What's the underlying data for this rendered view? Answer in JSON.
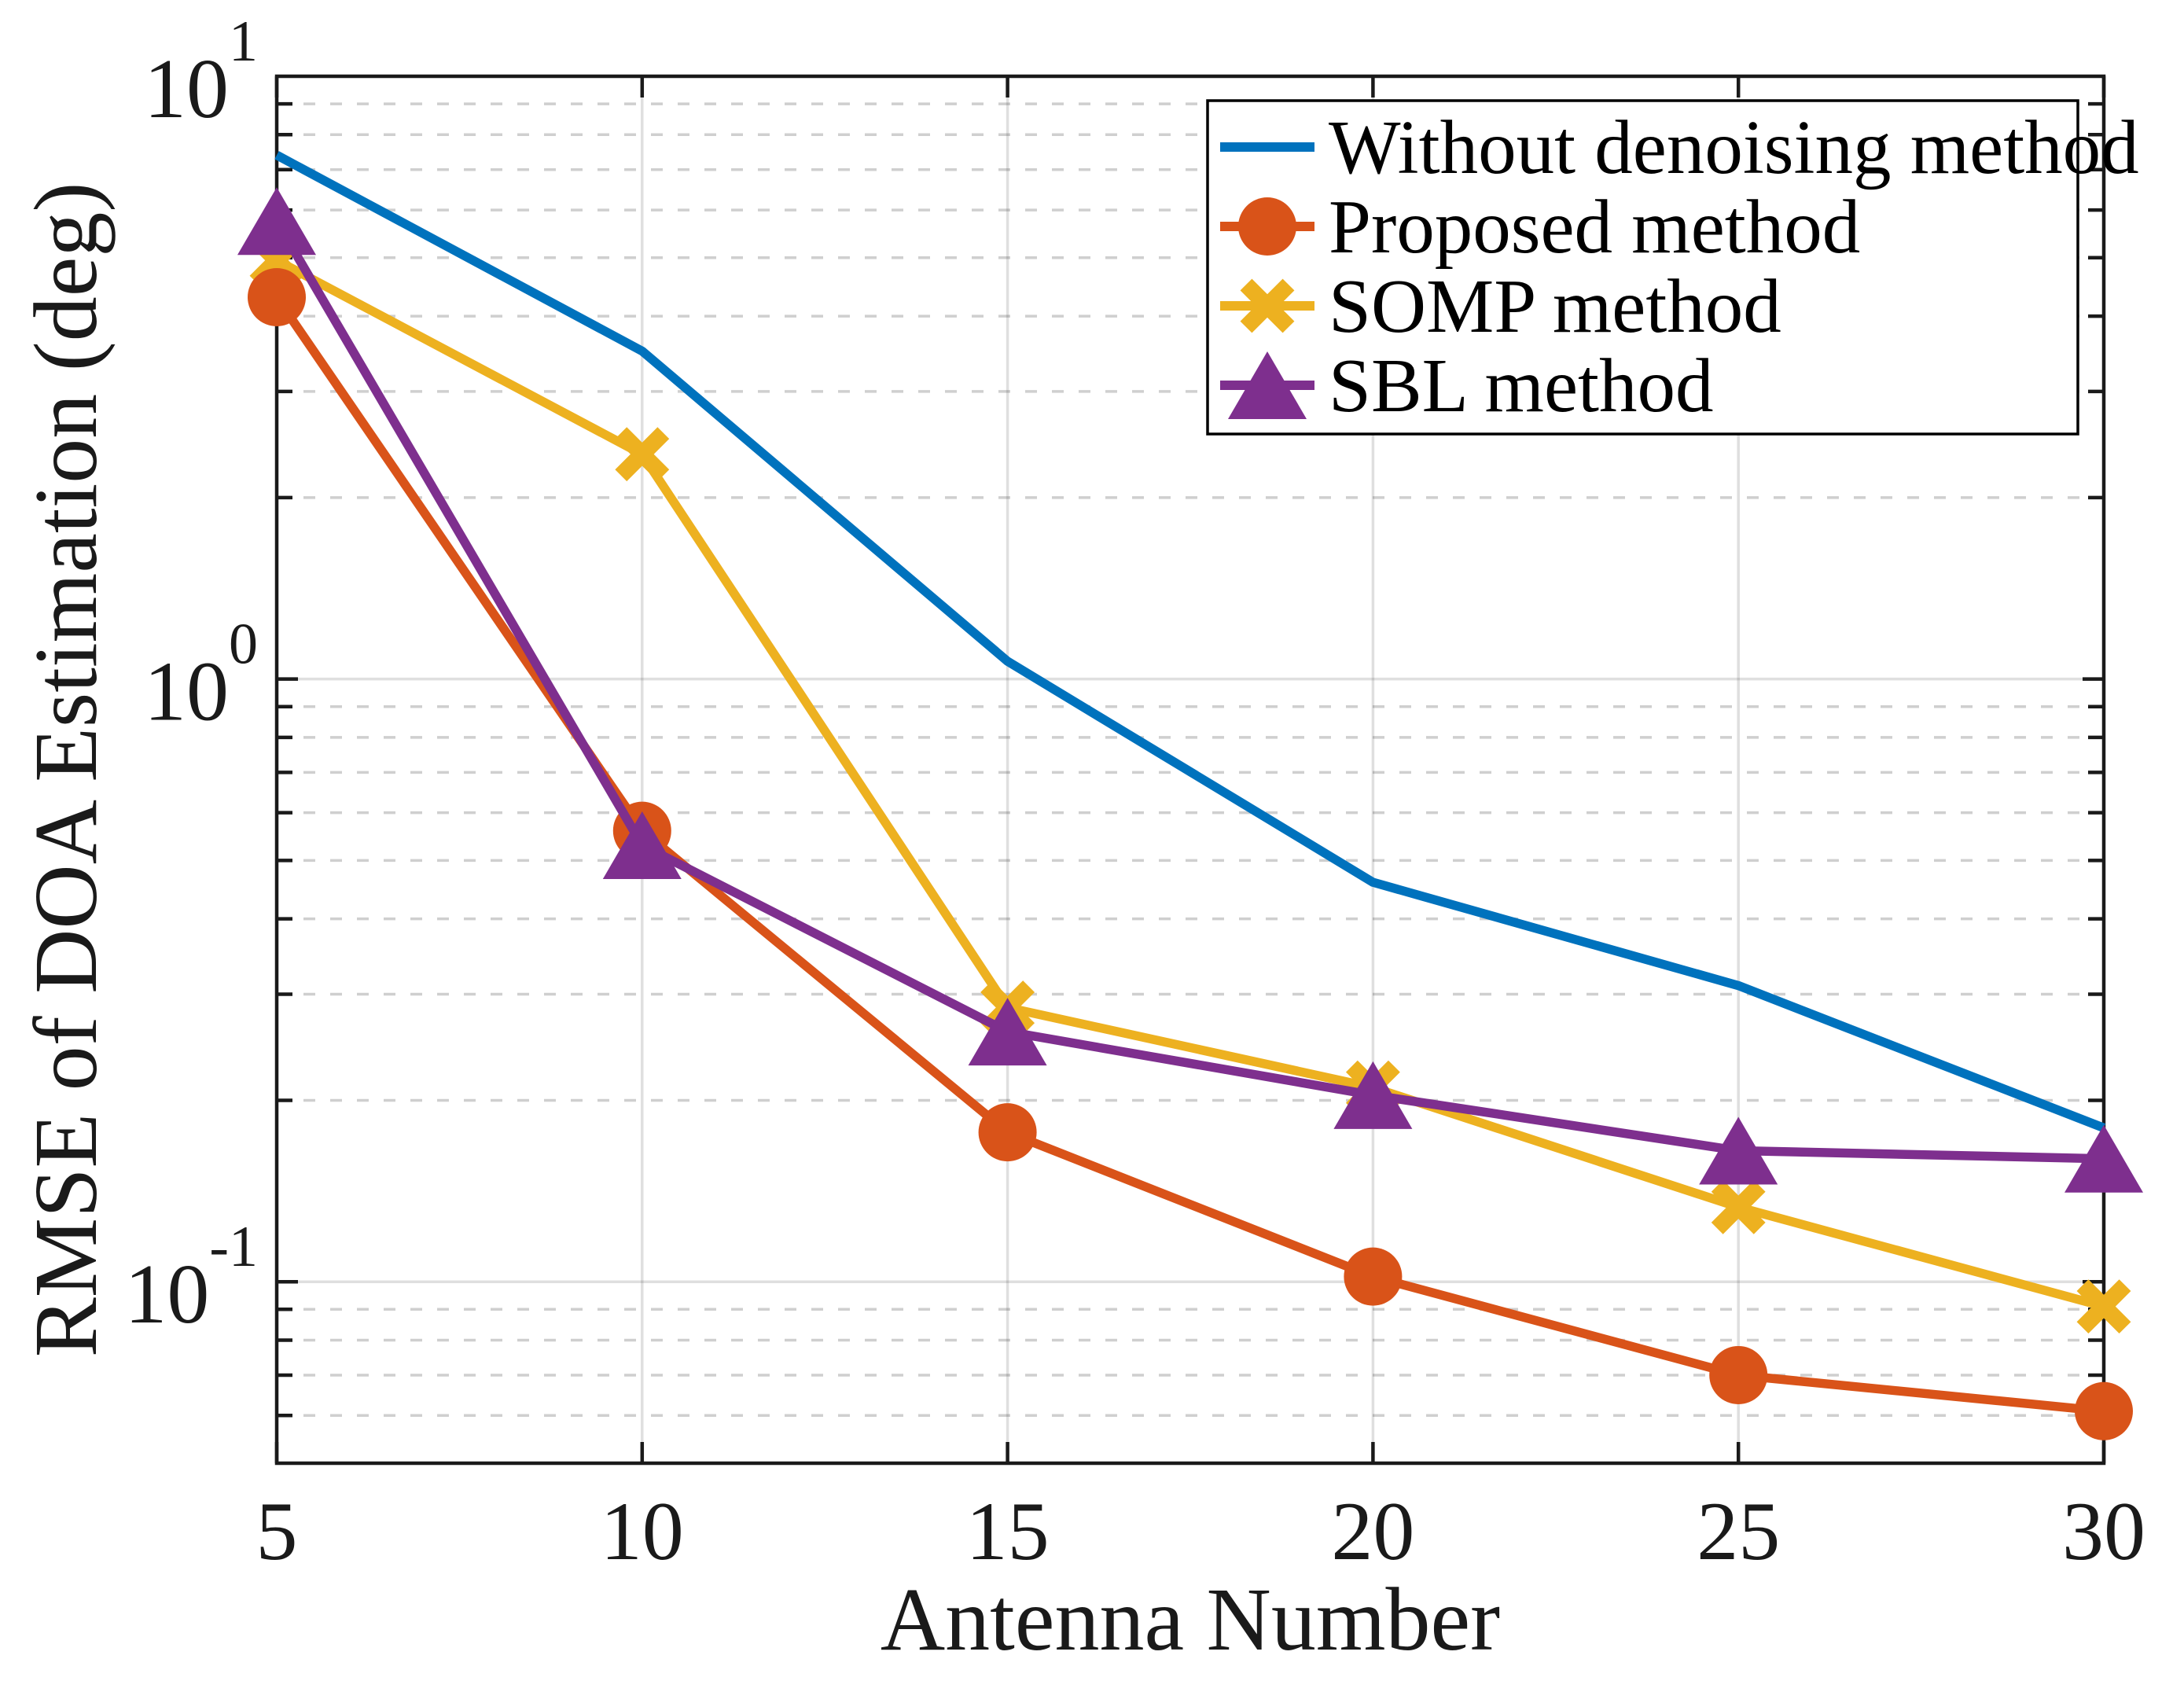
{
  "chart_data": {
    "type": "line",
    "title": "",
    "xlabel": "Antenna Number",
    "ylabel": "RMSE of DOA Estimation (deg)",
    "xlim": [
      5,
      30
    ],
    "ylim": [
      0.05,
      10
    ],
    "yscale": "log",
    "grid": true,
    "minor_grid": true,
    "legend_position": "northeast",
    "x": [
      5,
      10,
      15,
      20,
      25,
      30
    ],
    "x_tick_labels": [
      "5",
      "10",
      "15",
      "20",
      "25",
      "30"
    ],
    "y_major_ticks": [
      10,
      1,
      0.1
    ],
    "y_major_tick_labels": [
      {
        "mantissa": "10",
        "exponent": "1"
      },
      {
        "mantissa": "10",
        "exponent": "0"
      },
      {
        "mantissa": "10",
        "exponent": "-1"
      }
    ],
    "series": [
      {
        "name": "Without denoising method",
        "color": "#0072BD",
        "marker": "none",
        "values": [
          7.4,
          3.5,
          1.07,
          0.46,
          0.31,
          0.18
        ]
      },
      {
        "name": "Proposed method",
        "color": "#D95319",
        "marker": "circle",
        "values": [
          4.3,
          0.56,
          0.177,
          0.102,
          0.07,
          0.061
        ]
      },
      {
        "name": "SOMP method",
        "color": "#EDB120",
        "marker": "x",
        "values": [
          4.95,
          2.36,
          0.285,
          0.21,
          0.133,
          0.091
        ]
      },
      {
        "name": "SBL method",
        "color": "#7E2F8E",
        "marker": "triangle",
        "values": [
          5.75,
          0.53,
          0.26,
          0.204,
          0.165,
          0.16
        ]
      }
    ],
    "draw_order": [
      0,
      2,
      1,
      3
    ],
    "colors": {
      "axis": "#1a1a1a",
      "text": "#1a1a1a",
      "major_grid": "rgba(38,38,38,0.15)",
      "minor_grid": "rgba(38,38,38,0.22)",
      "background": "#ffffff"
    }
  }
}
